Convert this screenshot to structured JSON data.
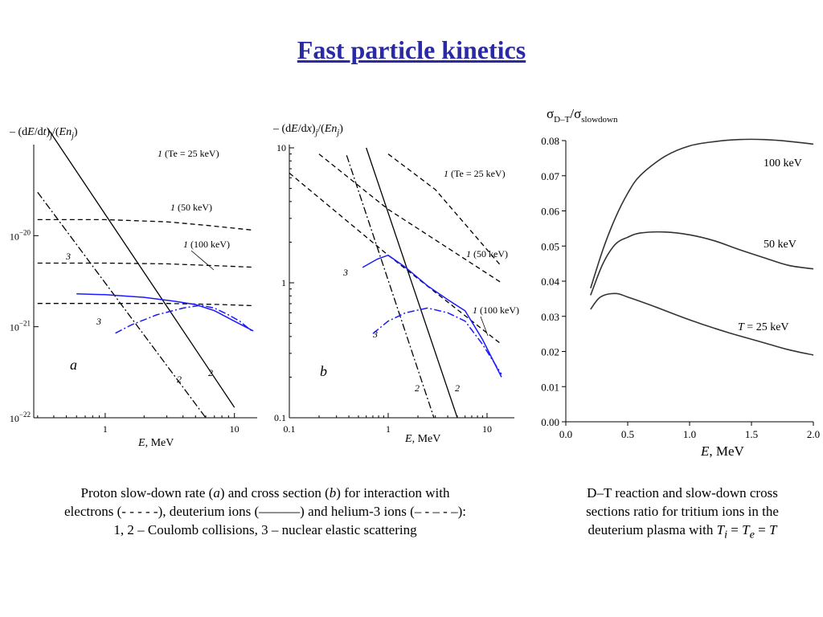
{
  "title": "Fast particle kinetics",
  "colors": {
    "title": "#2a2aa6",
    "blue_curve": "#1a1aff",
    "black": "#000000"
  },
  "chart_a": {
    "ylabel": "– (dE/dt)_j/(E n_j)",
    "panel_label": "a",
    "xlabel": "E, MeV",
    "x_scale": "log",
    "y_scale": "log",
    "xlim": [
      0.28,
      15
    ],
    "ylim": [
      1e-22,
      1e-19
    ],
    "x_ticks": [
      {
        "v": 1,
        "label": "1"
      },
      {
        "v": 10,
        "label": "10"
      }
    ],
    "y_ticks": [
      {
        "v": 1e-22,
        "base": "10",
        "exp": "−22"
      },
      {
        "v": 1e-21,
        "base": "10",
        "exp": "−21"
      },
      {
        "v": 1e-20,
        "base": "10",
        "exp": "−20"
      }
    ]
  },
  "chart_b": {
    "ylabel": "– (dE/dx)_j/(E n_j)",
    "panel_label": "b",
    "xlabel": "E, MeV",
    "x_scale": "log",
    "y_scale": "log",
    "xlim": [
      0.1,
      20
    ],
    "ylim": [
      0.1,
      12
    ],
    "x_ticks": [
      {
        "v": 0.1,
        "label": "0.1"
      },
      {
        "v": 1,
        "label": "1"
      },
      {
        "v": 10,
        "label": "10"
      }
    ],
    "y_ticks": [
      {
        "v": 0.1,
        "label": "0.1"
      },
      {
        "v": 1,
        "label": "1"
      },
      {
        "v": 10,
        "label": "10"
      }
    ]
  },
  "chart_data": [
    {
      "type": "line",
      "panel": "a",
      "x_scale": "log",
      "y_scale": "log",
      "series": [
        {
          "name": "1 (Te = 25 keV)",
          "label_num": "1",
          "label_rest": " (Te = 25 keV)",
          "style": "dashed",
          "color": "#000000",
          "points": [
            [
              0.3,
              1.5e-20
            ],
            [
              1,
              1.5e-20
            ],
            [
              3,
              1.42e-20
            ],
            [
              6,
              1.3e-20
            ],
            [
              14,
              1.15e-20
            ]
          ]
        },
        {
          "name": "1 (50 keV)",
          "label_num": "1",
          "label_rest": " (50 keV)",
          "style": "dashed",
          "color": "#000000",
          "points": [
            [
              0.3,
              5e-21
            ],
            [
              1,
              5e-21
            ],
            [
              3,
              4.9e-21
            ],
            [
              8,
              4.65e-21
            ],
            [
              14,
              4.5e-21
            ]
          ]
        },
        {
          "name": "1 (100 keV)",
          "label_num": "1",
          "label_rest": " (100 keV)",
          "style": "dashed",
          "color": "#000000",
          "points": [
            [
              0.3,
              1.8e-21
            ],
            [
              3,
              1.8e-21
            ],
            [
              8,
              1.75e-21
            ],
            [
              14,
              1.7e-21
            ]
          ]
        },
        {
          "name": "2",
          "label_num": "2",
          "label_rest": "",
          "style": "solid",
          "color": "#000000",
          "points": [
            [
              0.36,
              1.5e-19
            ],
            [
              10,
              1.3e-22
            ]
          ]
        },
        {
          "name": "2",
          "label_num": "2",
          "label_rest": "",
          "style": "dashdot",
          "color": "#000000",
          "points": [
            [
              0.3,
              3e-20
            ],
            [
              6,
              1e-22
            ]
          ]
        },
        {
          "name": "3",
          "label_num": "3",
          "label_rest": "",
          "style": "solid",
          "color": "#1a1aff",
          "points": [
            [
              0.6,
              2.3e-21
            ],
            [
              1,
              2.25e-21
            ],
            [
              2,
              2.1e-21
            ],
            [
              3.5,
              1.9e-21
            ],
            [
              5,
              1.75e-21
            ],
            [
              7,
              1.5e-21
            ],
            [
              10,
              1.15e-21
            ],
            [
              14,
              9e-22
            ]
          ]
        },
        {
          "name": "3",
          "label_num": "3",
          "label_rest": "",
          "style": "dashdot",
          "color": "#1a1aff",
          "points": [
            [
              1.2,
              8.5e-22
            ],
            [
              1.6,
              1.05e-21
            ],
            [
              2.5,
              1.35e-21
            ],
            [
              4,
              1.6e-21
            ],
            [
              5.5,
              1.72e-21
            ],
            [
              7,
              1.6e-21
            ],
            [
              9,
              1.35e-21
            ],
            [
              11,
              1.15e-21
            ],
            [
              14,
              8.7e-22
            ]
          ]
        }
      ]
    },
    {
      "type": "line",
      "panel": "b",
      "x_scale": "log",
      "y_scale": "log",
      "series": [
        {
          "name": "1 (Te = 25 keV)",
          "label_num": "1",
          "label_rest": " (Te = 25 keV)",
          "style": "dashed",
          "color": "#000000",
          "points": [
            [
              1,
              9
            ],
            [
              3,
              4.9
            ],
            [
              14,
              1.32
            ]
          ]
        },
        {
          "name": "1 (50 keV)",
          "label_num": "1",
          "label_rest": " (50 keV)",
          "style": "dashed",
          "color": "#000000",
          "points": [
            [
              0.2,
              9
            ],
            [
              1,
              3.5
            ],
            [
              14,
              1.0
            ]
          ]
        },
        {
          "name": "1 (100 keV)",
          "label_num": "1",
          "label_rest": " (100 keV)",
          "style": "dashed",
          "color": "#000000",
          "points": [
            [
              0.1,
              6.5
            ],
            [
              1,
              1.6
            ],
            [
              14,
              0.35
            ]
          ]
        },
        {
          "name": "2",
          "label_num": "2",
          "label_rest": "",
          "style": "solid",
          "color": "#000000",
          "points": [
            [
              0.6,
              10
            ],
            [
              5,
              0.1
            ]
          ]
        },
        {
          "name": "2",
          "label_num": "2",
          "label_rest": "",
          "style": "dashdot",
          "color": "#000000",
          "points": [
            [
              0.38,
              8.8
            ],
            [
              2.9,
              0.1
            ]
          ]
        },
        {
          "name": "3",
          "label_num": "3",
          "label_rest": "",
          "style": "solid",
          "color": "#1a1aff",
          "points": [
            [
              0.55,
              1.3
            ],
            [
              0.78,
              1.5
            ],
            [
              1,
              1.6
            ],
            [
              1.5,
              1.3
            ],
            [
              2.5,
              0.95
            ],
            [
              4,
              0.75
            ],
            [
              6,
              0.62
            ],
            [
              9,
              0.38
            ],
            [
              14,
              0.2
            ]
          ]
        },
        {
          "name": "3",
          "label_num": "3",
          "label_rest": "",
          "style": "dashdot",
          "color": "#1a1aff",
          "points": [
            [
              0.7,
              0.42
            ],
            [
              1,
              0.52
            ],
            [
              1.5,
              0.6
            ],
            [
              2.5,
              0.65
            ],
            [
              4,
              0.6
            ],
            [
              6,
              0.52
            ],
            [
              9,
              0.35
            ],
            [
              14,
              0.21
            ]
          ]
        }
      ]
    },
    {
      "type": "line",
      "panel": "c",
      "title": "σD–T/σslowdown",
      "xlabel": "E, MeV",
      "ylabel": "σD–T/σslowdown",
      "xlim": [
        0,
        2
      ],
      "ylim": [
        0,
        0.08
      ],
      "x_ticks": [
        "0.0",
        "0.5",
        "1.0",
        "1.5",
        "2.0"
      ],
      "y_ticks": [
        "0.00",
        "0.01",
        "0.02",
        "0.03",
        "0.04",
        "0.05",
        "0.06",
        "0.07",
        "0.08"
      ],
      "series": [
        {
          "name": "100 keV",
          "label_pre": "",
          "label_sub": "",
          "label_post": "100 keV",
          "color": "#000000",
          "points": [
            [
              0.2,
              0.038
            ],
            [
              0.3,
              0.049
            ],
            [
              0.4,
              0.058
            ],
            [
              0.5,
              0.065
            ],
            [
              0.6,
              0.07
            ],
            [
              0.8,
              0.0755
            ],
            [
              1.0,
              0.0785
            ],
            [
              1.2,
              0.0797
            ],
            [
              1.4,
              0.0803
            ],
            [
              1.6,
              0.0803
            ],
            [
              1.8,
              0.0798
            ],
            [
              2.0,
              0.079
            ]
          ]
        },
        {
          "name": "50 keV",
          "label_pre": "",
          "label_sub": "",
          "label_post": "50 keV",
          "color": "#000000",
          "points": [
            [
              0.2,
              0.036
            ],
            [
              0.3,
              0.045
            ],
            [
              0.4,
              0.0505
            ],
            [
              0.5,
              0.0525
            ],
            [
              0.6,
              0.0537
            ],
            [
              0.8,
              0.054
            ],
            [
              1.0,
              0.0532
            ],
            [
              1.2,
              0.0515
            ],
            [
              1.4,
              0.049
            ],
            [
              1.6,
              0.0467
            ],
            [
              1.8,
              0.0445
            ],
            [
              2.0,
              0.0435
            ]
          ]
        },
        {
          "name": "T = 25 keV",
          "label_pre": "T",
          "label_sub": "",
          "label_post": " = 25 keV",
          "color": "#000000",
          "points": [
            [
              0.2,
              0.032
            ],
            [
              0.28,
              0.0355
            ],
            [
              0.4,
              0.0365
            ],
            [
              0.5,
              0.0355
            ],
            [
              0.7,
              0.033
            ],
            [
              1.0,
              0.029
            ],
            [
              1.3,
              0.0255
            ],
            [
              1.6,
              0.0225
            ],
            [
              1.8,
              0.0205
            ],
            [
              2.0,
              0.019
            ]
          ]
        }
      ]
    }
  ],
  "caption_left": {
    "line1_a": "Proton slow-down rate (",
    "line1_b": "a",
    "line1_c": ") and cross section (",
    "line1_d": "b",
    "line1_e": ") for interaction with",
    "line2": "electrons (- - - - -), deuterium ions (———) and helium-3 ions (– - – - –):",
    "line3": "1, 2 – Coulomb collisions, 3 – nuclear elastic scattering"
  },
  "caption_right": {
    "line1": "D–T reaction and slow-down cross",
    "line2": "sections ratio for tritium ions in the",
    "line3": "deuterium plasma with ",
    "ti": "T",
    "ti_sub": "i",
    "eq1": " = ",
    "te": "T",
    "te_sub": "e",
    "eq2": " = ",
    "t": "T"
  }
}
